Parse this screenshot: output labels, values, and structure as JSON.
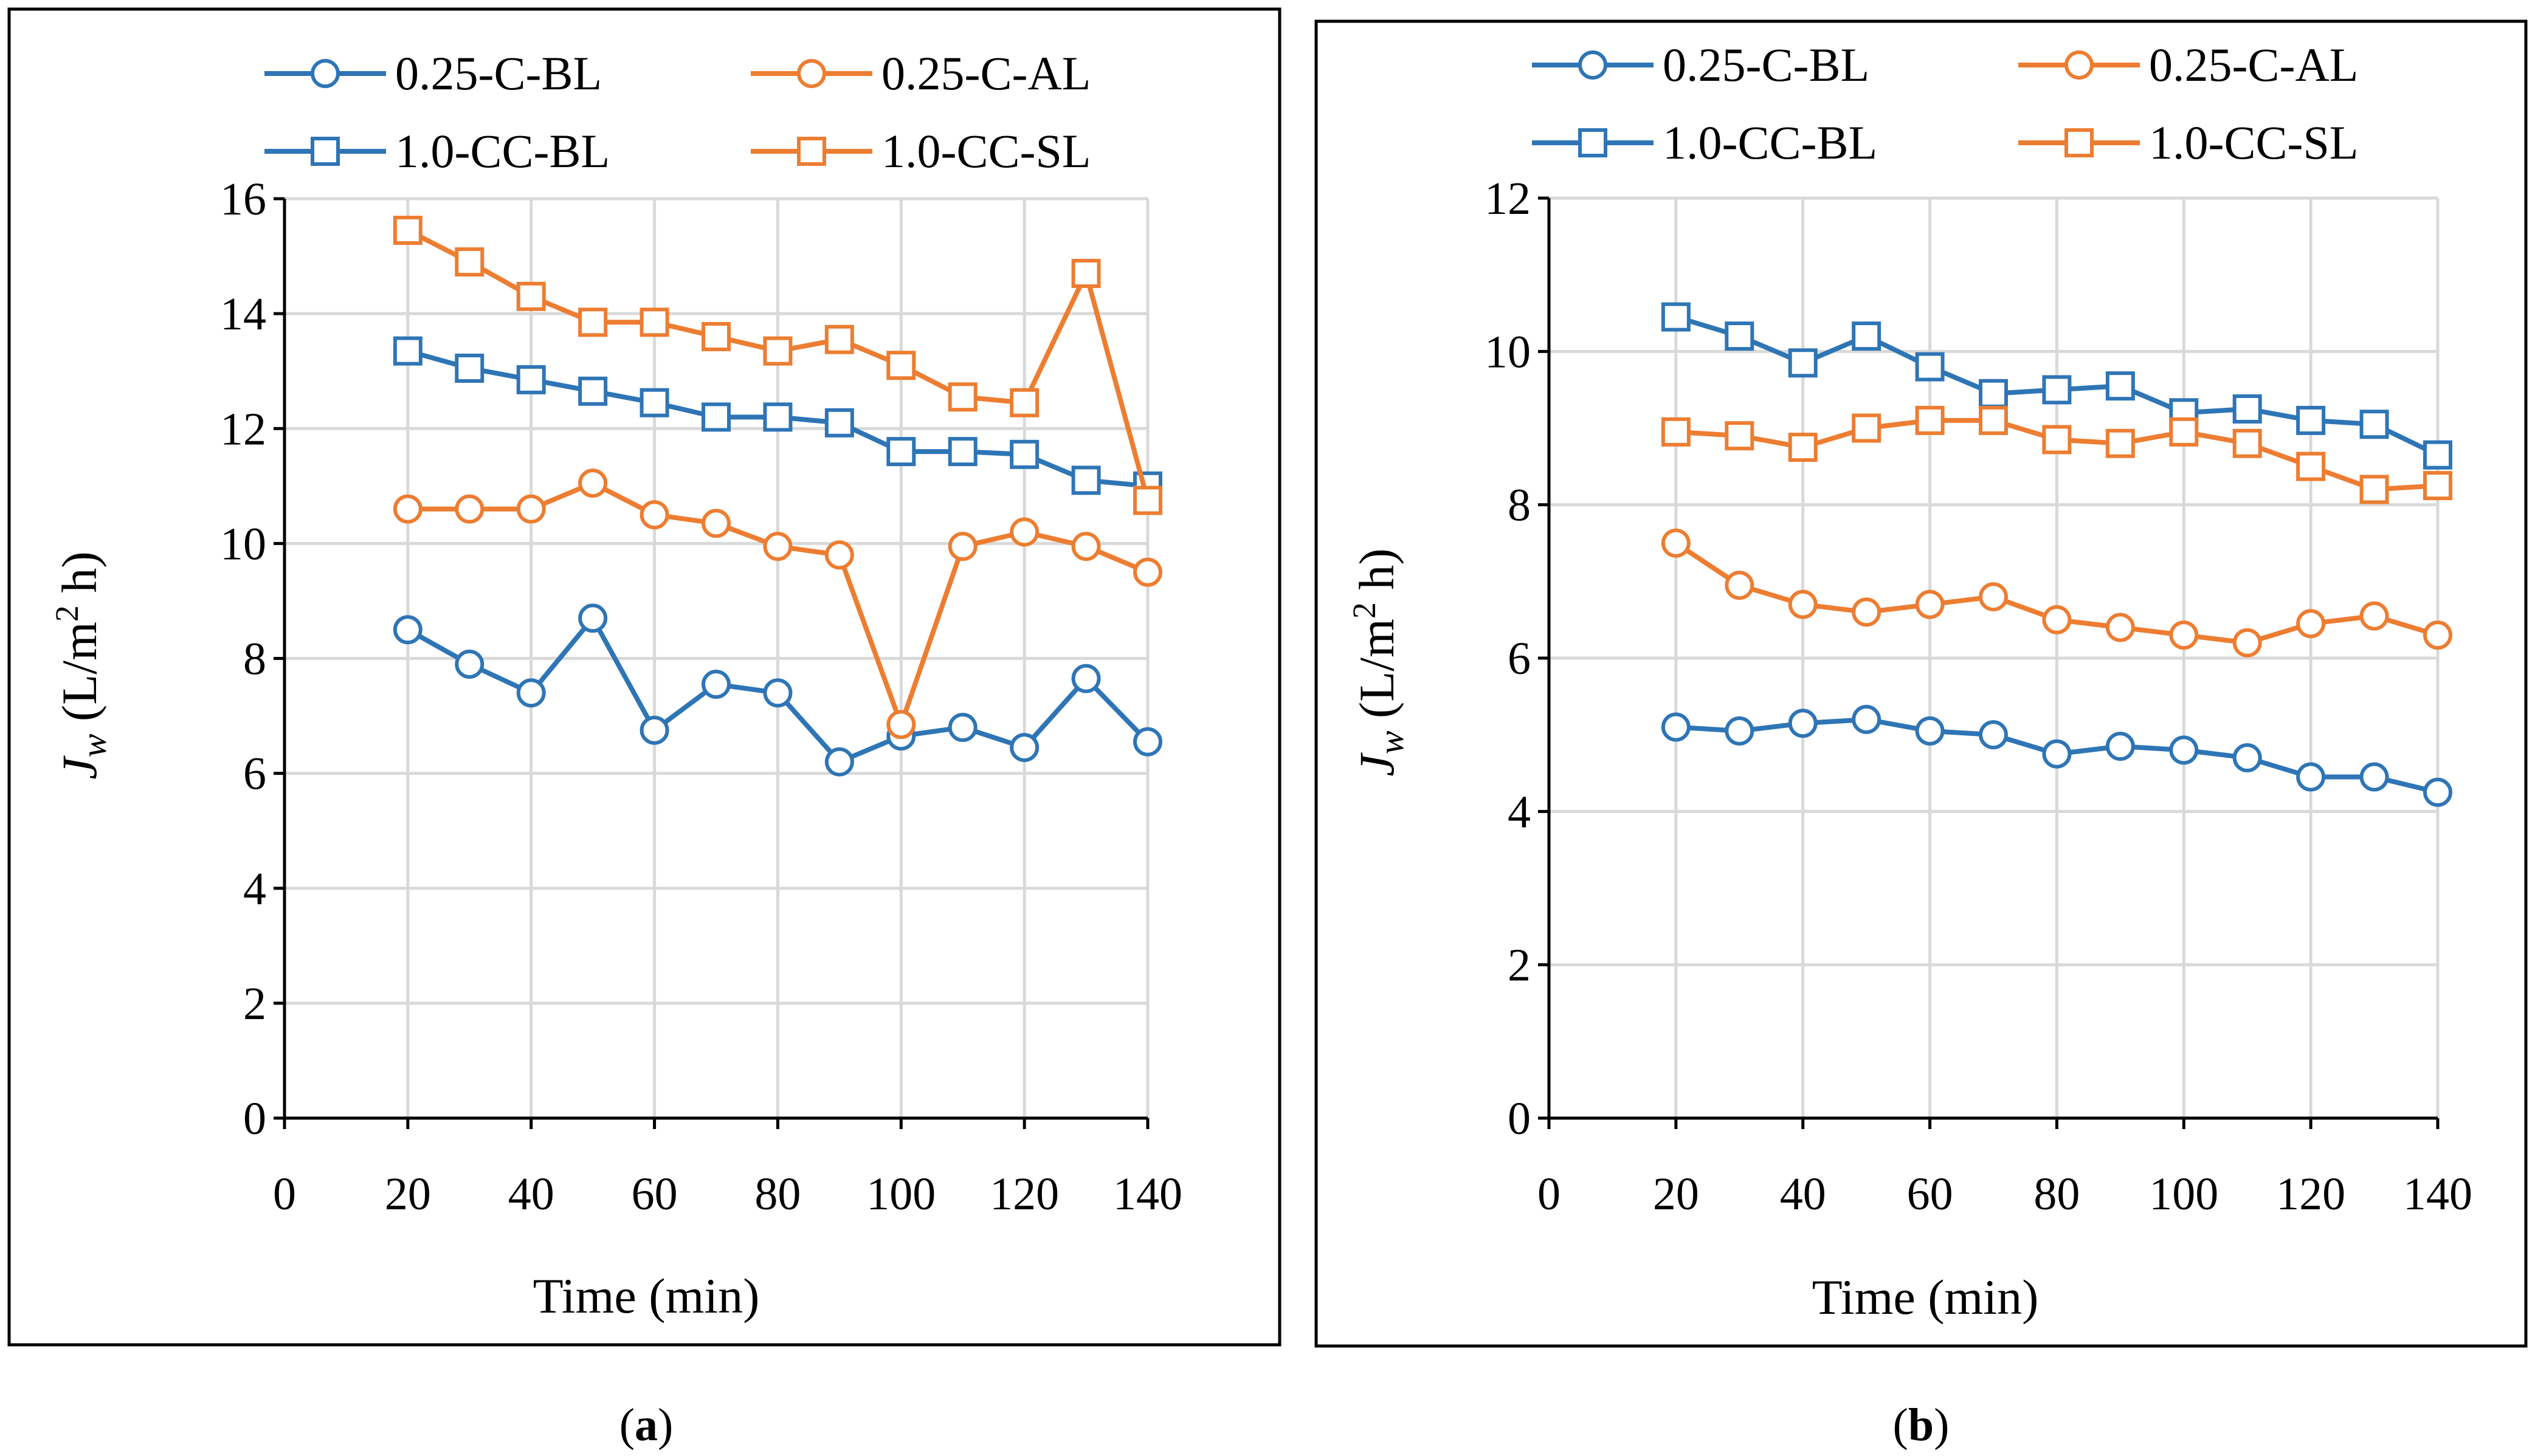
{
  "colors": {
    "blue": "#2e75b6",
    "orange": "#ed7d31"
  },
  "chart_data": [
    {
      "type": "line",
      "panel": "a",
      "caption": {
        "open": "(",
        "letter": "a",
        "close": ")"
      },
      "title": "",
      "xlabel": "Time (min)",
      "ylabel": {
        "symbol": "J",
        "subscript": "w",
        "unit_open": " (L/m",
        "unit_sup": "2",
        "unit_close": " h)"
      },
      "xlim": [
        0,
        140
      ],
      "ylim": [
        0,
        16
      ],
      "xticks": [
        0,
        20,
        40,
        60,
        80,
        100,
        120,
        140
      ],
      "yticks": [
        0,
        2,
        4,
        6,
        8,
        10,
        12,
        14,
        16
      ],
      "grid": true,
      "legend_position": "top",
      "x": [
        20,
        30,
        40,
        50,
        60,
        70,
        80,
        90,
        100,
        110,
        120,
        130,
        140
      ],
      "series": [
        {
          "name": "0.25-C-BL",
          "color": "blue",
          "marker": "circle",
          "values": [
            8.5,
            7.9,
            7.4,
            8.7,
            6.75,
            7.55,
            7.4,
            6.2,
            6.65,
            6.8,
            6.45,
            7.65,
            6.55
          ]
        },
        {
          "name": "0.25-C-AL",
          "color": "orange",
          "marker": "circle",
          "values": [
            10.6,
            10.6,
            10.6,
            11.05,
            10.5,
            10.35,
            9.95,
            9.8,
            6.85,
            9.95,
            10.2,
            9.95,
            9.5
          ]
        },
        {
          "name": "1.0-CC-BL",
          "color": "blue",
          "marker": "square",
          "values": [
            13.35,
            13.05,
            12.85,
            12.65,
            12.45,
            12.2,
            12.2,
            12.1,
            11.6,
            11.6,
            11.55,
            11.1,
            11.0
          ]
        },
        {
          "name": "1.0-CC-SL",
          "color": "orange",
          "marker": "square",
          "values": [
            15.45,
            14.9,
            14.3,
            13.85,
            13.85,
            13.6,
            13.35,
            13.55,
            13.1,
            12.55,
            12.45,
            14.7,
            10.75
          ]
        }
      ]
    },
    {
      "type": "line",
      "panel": "b",
      "caption": {
        "open": "(",
        "letter": "b",
        "close": ")"
      },
      "title": "",
      "xlabel": "Time (min)",
      "ylabel": {
        "symbol": "J",
        "subscript": "w",
        "unit_open": " (L/m",
        "unit_sup": "2",
        "unit_close": " h)"
      },
      "xlim": [
        0,
        140
      ],
      "ylim": [
        0,
        12
      ],
      "xticks": [
        0,
        20,
        40,
        60,
        80,
        100,
        120,
        140
      ],
      "yticks": [
        0,
        2,
        4,
        6,
        8,
        10,
        12
      ],
      "grid": true,
      "legend_position": "top",
      "x": [
        20,
        30,
        40,
        50,
        60,
        70,
        80,
        90,
        100,
        110,
        120,
        130,
        140
      ],
      "series": [
        {
          "name": "0.25-C-BL",
          "color": "blue",
          "marker": "circle",
          "values": [
            5.1,
            5.05,
            5.15,
            5.2,
            5.05,
            5.0,
            4.75,
            4.85,
            4.8,
            4.7,
            4.45,
            4.45,
            4.25
          ]
        },
        {
          "name": "0.25-C-AL",
          "color": "orange",
          "marker": "circle",
          "values": [
            7.5,
            6.95,
            6.7,
            6.6,
            6.7,
            6.8,
            6.5,
            6.4,
            6.3,
            6.2,
            6.45,
            6.55,
            6.3
          ]
        },
        {
          "name": "1.0-CC-BL",
          "color": "blue",
          "marker": "square",
          "values": [
            10.45,
            10.2,
            9.85,
            10.2,
            9.8,
            9.45,
            9.5,
            9.55,
            9.2,
            9.25,
            9.1,
            9.05,
            8.65
          ]
        },
        {
          "name": "1.0-CC-SL",
          "color": "orange",
          "marker": "square",
          "values": [
            8.95,
            8.9,
            8.75,
            9.0,
            9.1,
            9.1,
            8.85,
            8.8,
            8.95,
            8.8,
            8.5,
            8.2,
            8.25
          ]
        }
      ]
    }
  ]
}
